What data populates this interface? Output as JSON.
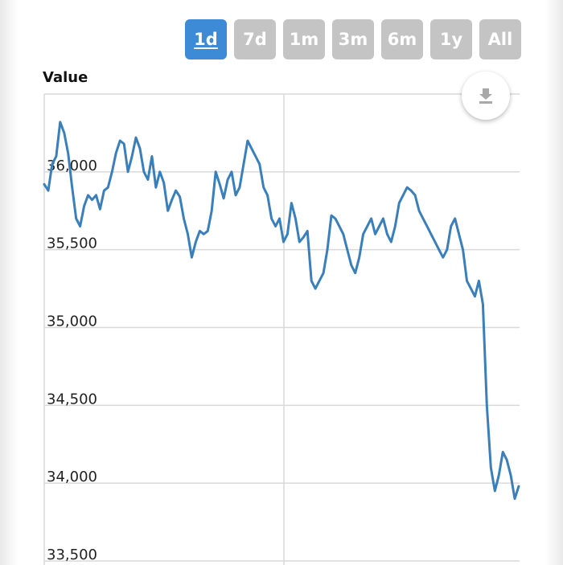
{
  "range_selector": {
    "buttons": [
      {
        "label": "1d",
        "active": true
      },
      {
        "label": "7d",
        "active": false
      },
      {
        "label": "1m",
        "active": false
      },
      {
        "label": "3m",
        "active": false
      },
      {
        "label": "6m",
        "active": false
      },
      {
        "label": "1y",
        "active": false
      },
      {
        "label": "All",
        "active": false
      }
    ]
  },
  "export": {
    "icon": "download-icon"
  },
  "colors": {
    "series": "#3a7fba",
    "active_button": "#3d8bd6",
    "inactive_button": "#c4c4c4",
    "grid": "#d9d9d9"
  },
  "chart_data": {
    "type": "line",
    "title": "",
    "xlabel": "",
    "ylabel": "Value",
    "ylim": [
      33500,
      36500
    ],
    "yticks": [
      "33,500",
      "34,000",
      "34,500",
      "35,000",
      "35,500",
      "36,000"
    ],
    "ytick_values": [
      33500,
      34000,
      34500,
      35000,
      35500,
      36000
    ],
    "grid": true,
    "legend": "none",
    "series": [
      {
        "name": "",
        "values": [
          35920,
          35880,
          36050,
          36100,
          36320,
          36250,
          36120,
          35900,
          35700,
          35650,
          35780,
          35850,
          35820,
          35850,
          35760,
          35880,
          35900,
          36000,
          36120,
          36200,
          36180,
          36000,
          36100,
          36220,
          36150,
          36000,
          35950,
          36100,
          35900,
          36000,
          35930,
          35750,
          35820,
          35880,
          35840,
          35700,
          35600,
          35450,
          35550,
          35620,
          35600,
          35620,
          35750,
          36000,
          35920,
          35830,
          35950,
          36000,
          35850,
          35900,
          36050,
          36200,
          36150,
          36100,
          36050,
          35900,
          35850,
          35700,
          35650,
          35700,
          35550,
          35600,
          35800,
          35700,
          35550,
          35580,
          35620,
          35300,
          35250,
          35300,
          35350,
          35500,
          35720,
          35700,
          35650,
          35600,
          35500,
          35400,
          35350,
          35450,
          35600,
          35650,
          35700,
          35600,
          35650,
          35700,
          35600,
          35550,
          35650,
          35800,
          35850,
          35900,
          35880,
          35850,
          35750,
          35700,
          35650,
          35600,
          35550,
          35500,
          35450,
          35500,
          35650,
          35700,
          35600,
          35500,
          35300,
          35250,
          35200,
          35300,
          35150,
          34500,
          34100,
          33950,
          34050,
          34200,
          34150,
          34050,
          33900,
          33980
        ]
      }
    ]
  }
}
